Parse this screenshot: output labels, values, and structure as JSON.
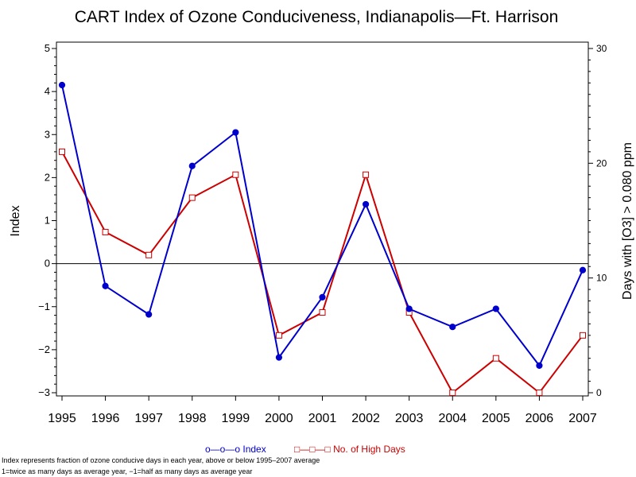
{
  "chart_data": {
    "type": "line",
    "title": "CART Index of Ozone Conduciveness, Indianapolis—Ft. Harrison",
    "ylabel": "Index",
    "y2label": "Days with [O3] > 0.080 ppm",
    "x": [
      "1995",
      "1996",
      "1997",
      "1998",
      "1999",
      "2000",
      "2001",
      "2002",
      "2003",
      "2004",
      "2005",
      "2006",
      "2007"
    ],
    "ylim": [
      -3,
      5
    ],
    "y2lim": [
      0,
      30
    ],
    "yticks": [
      5,
      4,
      3,
      2,
      1,
      0,
      -1,
      -2,
      -3
    ],
    "y2ticks": [
      30,
      20,
      10,
      0
    ],
    "zero_line": true,
    "series": [
      {
        "name": "Index",
        "axis": "left",
        "color": "#0000cc",
        "marker": "filled-circle",
        "values": [
          4.15,
          -0.52,
          -1.18,
          2.27,
          3.05,
          -2.18,
          -0.78,
          1.38,
          -1.05,
          -1.47,
          -1.05,
          -2.37,
          -0.15
        ]
      },
      {
        "name": "No. of High Days",
        "axis": "right",
        "color": "#cc0000",
        "marker": "open-square",
        "values": [
          21,
          14,
          12,
          17,
          19,
          5,
          7,
          19,
          7,
          0,
          3,
          0,
          5
        ]
      }
    ],
    "legend": {
      "position": "bottom",
      "items": [
        {
          "glyph": "o—o—o",
          "label": "Index",
          "color": "#0000cc"
        },
        {
          "glyph": "□—□—□",
          "label": "No. of High Days",
          "color": "#cc0000"
        }
      ]
    },
    "notes": [
      "Index represents fraction of ozone conducive days in each year, above or below 1995–2007 average",
      "1=twice as many days as average year, −1=half as many days as average year"
    ]
  }
}
